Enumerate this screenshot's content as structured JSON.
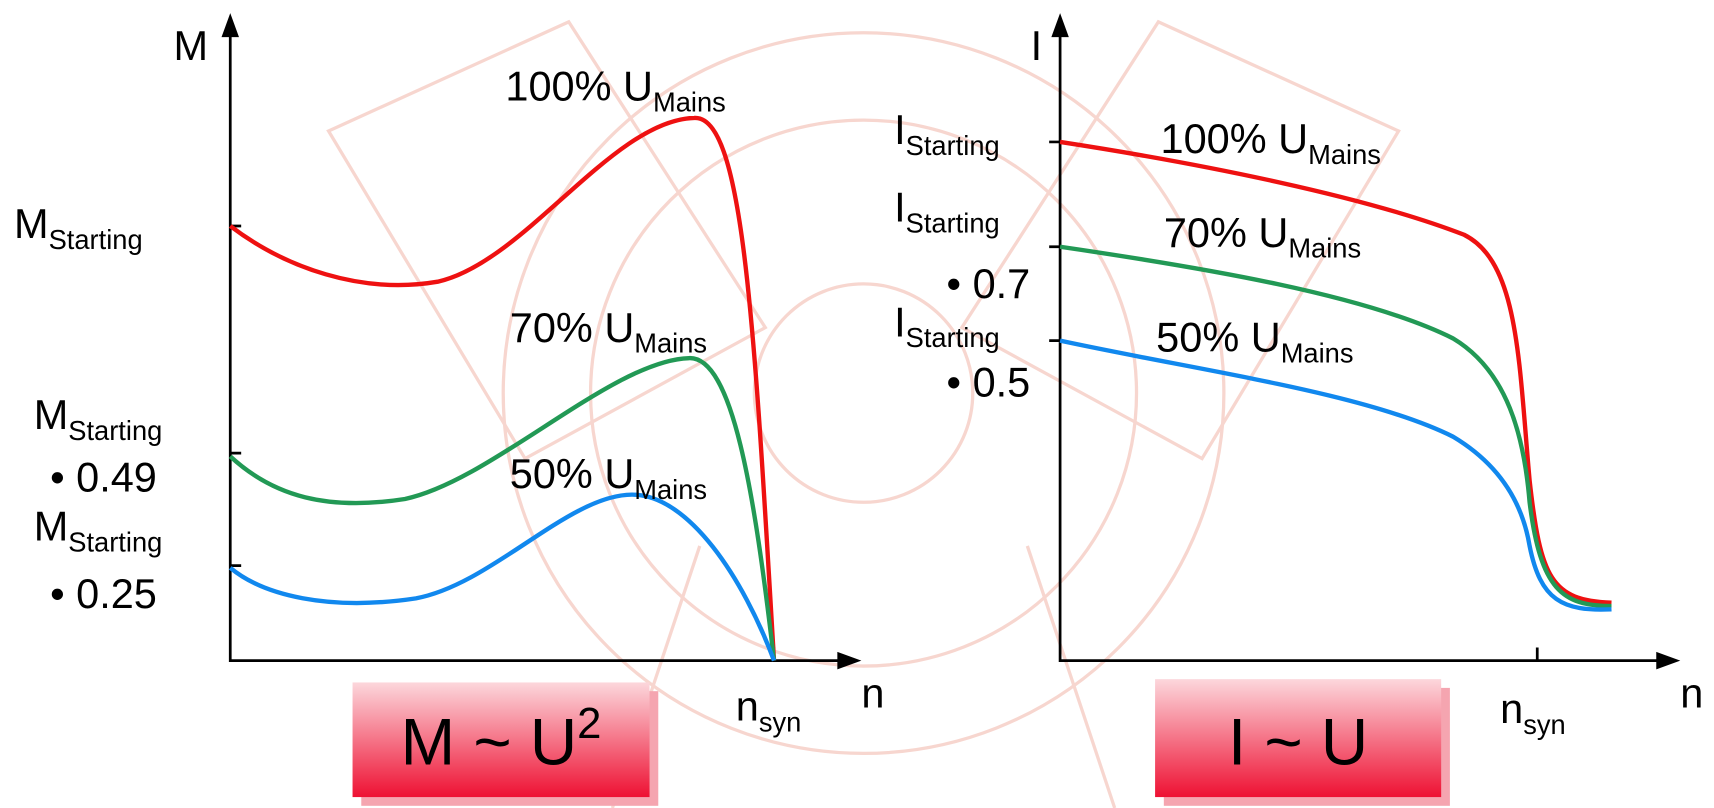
{
  "left": {
    "axis_y": "M",
    "axis_x": "n",
    "sync": {
      "text": "n",
      "sub": "syn"
    },
    "ticks": [
      {
        "text": "M",
        "sub": "Starting"
      },
      {
        "text": "M",
        "sub": "Starting",
        "factor": "• 0.49"
      },
      {
        "text": "M",
        "sub": "Starting",
        "factor": "• 0.25"
      }
    ],
    "curves": [
      {
        "text": "100% U",
        "sub": "Mains"
      },
      {
        "text": "70% U",
        "sub": "Mains"
      },
      {
        "text": "50% U",
        "sub": "Mains"
      }
    ],
    "formula": {
      "text": "M ~ U",
      "sup": "2"
    }
  },
  "right": {
    "axis_y": "I",
    "axis_x": "n",
    "sync": {
      "text": "n",
      "sub": "syn"
    },
    "ticks": [
      {
        "text": "I",
        "sub": "Starting"
      },
      {
        "text": "I",
        "sub": "Starting",
        "factor": "• 0.7"
      },
      {
        "text": "I",
        "sub": "Starting",
        "factor": "• 0.5"
      }
    ],
    "curves": [
      {
        "text": "100% U",
        "sub": "Mains"
      },
      {
        "text": "70% U",
        "sub": "Mains"
      },
      {
        "text": "50% U",
        "sub": "Mains"
      }
    ],
    "formula": {
      "text": "I ~ U"
    }
  }
}
